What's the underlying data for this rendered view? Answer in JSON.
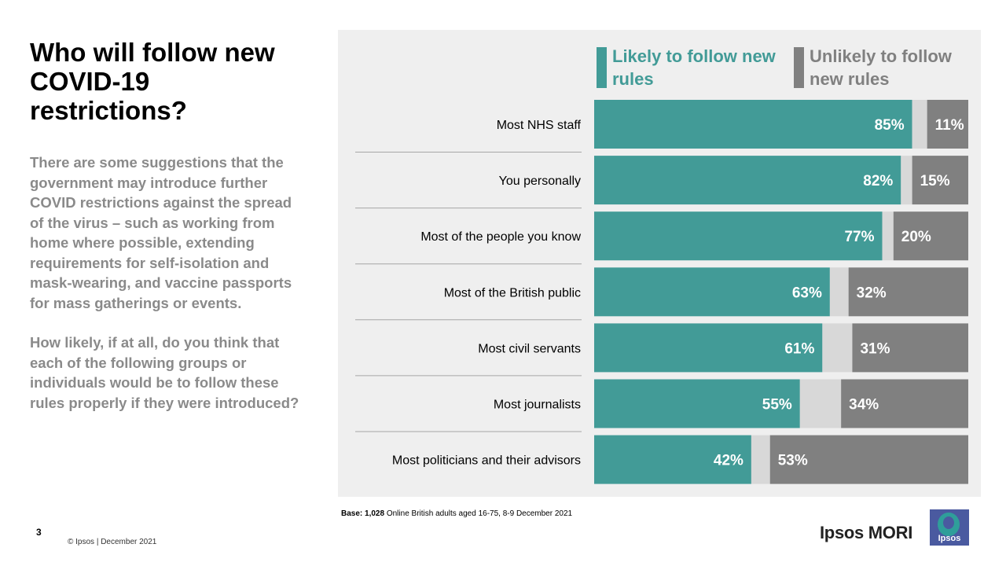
{
  "title": "Who will follow new COVID-19 restrictions?",
  "body": {
    "para1": "There are some suggestions that the government may introduce further COVID restrictions against the spread of the virus – such as working from home where possible, extending requirements for self-isolation and mask-wearing, and vaccine passports for mass gatherings or events.",
    "para2": "How likely, if at all, do you think that each of the following groups or individuals would be to follow these rules properly if they were introduced?"
  },
  "legend": {
    "likely": "Likely to follow new rules",
    "unlikely": "Unlikely to follow new rules"
  },
  "colors": {
    "likely": "#429b97",
    "unlikely": "#808080",
    "neither": "#d8d8d8"
  },
  "chart_data": {
    "type": "bar",
    "orientation": "horizontal-stacked",
    "categories": [
      "Most NHS staff",
      "You personally",
      "Most of the people you know",
      "Most of the British public",
      "Most civil servants",
      "Most journalists",
      "Most politicians and their advisors"
    ],
    "series": [
      {
        "name": "Likely to follow new rules",
        "values": [
          85,
          82,
          77,
          63,
          61,
          55,
          42
        ]
      },
      {
        "name": "",
        "values": [
          4,
          3,
          3,
          5,
          8,
          11,
          5
        ]
      },
      {
        "name": "Unlikely to follow new rules",
        "values": [
          11,
          15,
          20,
          32,
          31,
          34,
          53
        ]
      }
    ],
    "likely_labels": [
      "85%",
      "82%",
      "77%",
      "63%",
      "61%",
      "55%",
      "42%"
    ],
    "unlikely_labels": [
      "11%",
      "15%",
      "20%",
      "32%",
      "31%",
      "34%",
      "53%"
    ],
    "xlim": [
      0,
      100
    ],
    "legend_position": "top"
  },
  "base": {
    "label": "Base:",
    "n": "1,028",
    "text": "Online British adults aged 16-75, 8-9 December 2021"
  },
  "footer": {
    "page_number": "3",
    "copyright": "© Ipsos | December 2021",
    "brand": "Ipsos MORI",
    "logo_text": "Ipsos"
  }
}
